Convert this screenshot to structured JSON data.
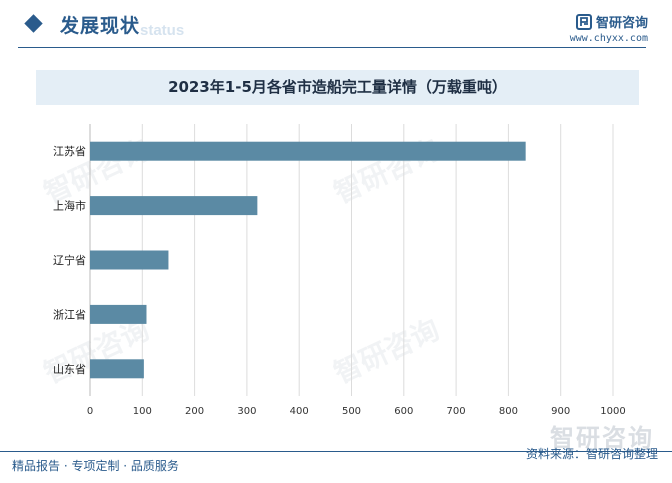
{
  "header": {
    "section_title": "发展现状",
    "section_subtitle": "status",
    "brand_name": "智研咨询",
    "brand_url": "www.chyxx.com"
  },
  "chart_data": {
    "type": "bar",
    "orientation": "horizontal",
    "title": "2023年1-5月各省市造船完工量详情（万载重吨）",
    "categories": [
      "江苏省",
      "上海市",
      "辽宁省",
      "浙江省",
      "山东省"
    ],
    "values": [
      833,
      320,
      150,
      108,
      103
    ],
    "xlim": [
      0,
      1000
    ],
    "xticks": [
      0,
      100,
      200,
      300,
      400,
      500,
      600,
      700,
      800,
      900,
      1000
    ],
    "xlabel": "",
    "ylabel": "",
    "grid": true,
    "bar_color": "#5b8aa4"
  },
  "watermark": "智研咨询",
  "footer": {
    "left_text": "精品报告 · 专项定制 · 品质服务",
    "right_text": "资料来源：智研咨询整理"
  }
}
